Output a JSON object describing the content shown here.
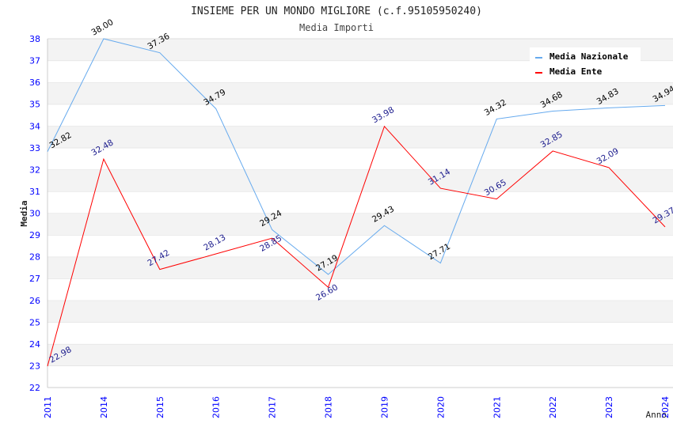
{
  "chart_data": {
    "type": "line",
    "title": "INSIEME PER UN MONDO MIGLIORE (c.f.95105950240)",
    "subtitle": "Media Importi",
    "xlabel": "Anno",
    "ylabel": "Media",
    "ylim": [
      22,
      38
    ],
    "yticks": [
      22,
      23,
      24,
      25,
      26,
      27,
      28,
      29,
      30,
      31,
      32,
      33,
      34,
      35,
      36,
      37,
      38
    ],
    "categories": [
      "2011",
      "2014",
      "2015",
      "2016",
      "2017",
      "2018",
      "2019",
      "2020",
      "2021",
      "2022",
      "2023",
      "2024"
    ],
    "grid": true,
    "legend_position": "top-right",
    "series": [
      {
        "name": "Media Nazionale",
        "color": "#66aaee",
        "label_color": "#000000",
        "values": [
          32.82,
          38.0,
          37.36,
          34.79,
          29.24,
          27.19,
          29.43,
          27.71,
          34.32,
          34.68,
          34.83,
          34.94
        ]
      },
      {
        "name": "Media Ente",
        "color": "#ff0000",
        "label_color": "#1a1a8c",
        "values": [
          22.98,
          32.48,
          27.42,
          28.13,
          28.85,
          26.6,
          33.98,
          31.14,
          30.65,
          32.85,
          32.09,
          29.37
        ]
      }
    ]
  }
}
